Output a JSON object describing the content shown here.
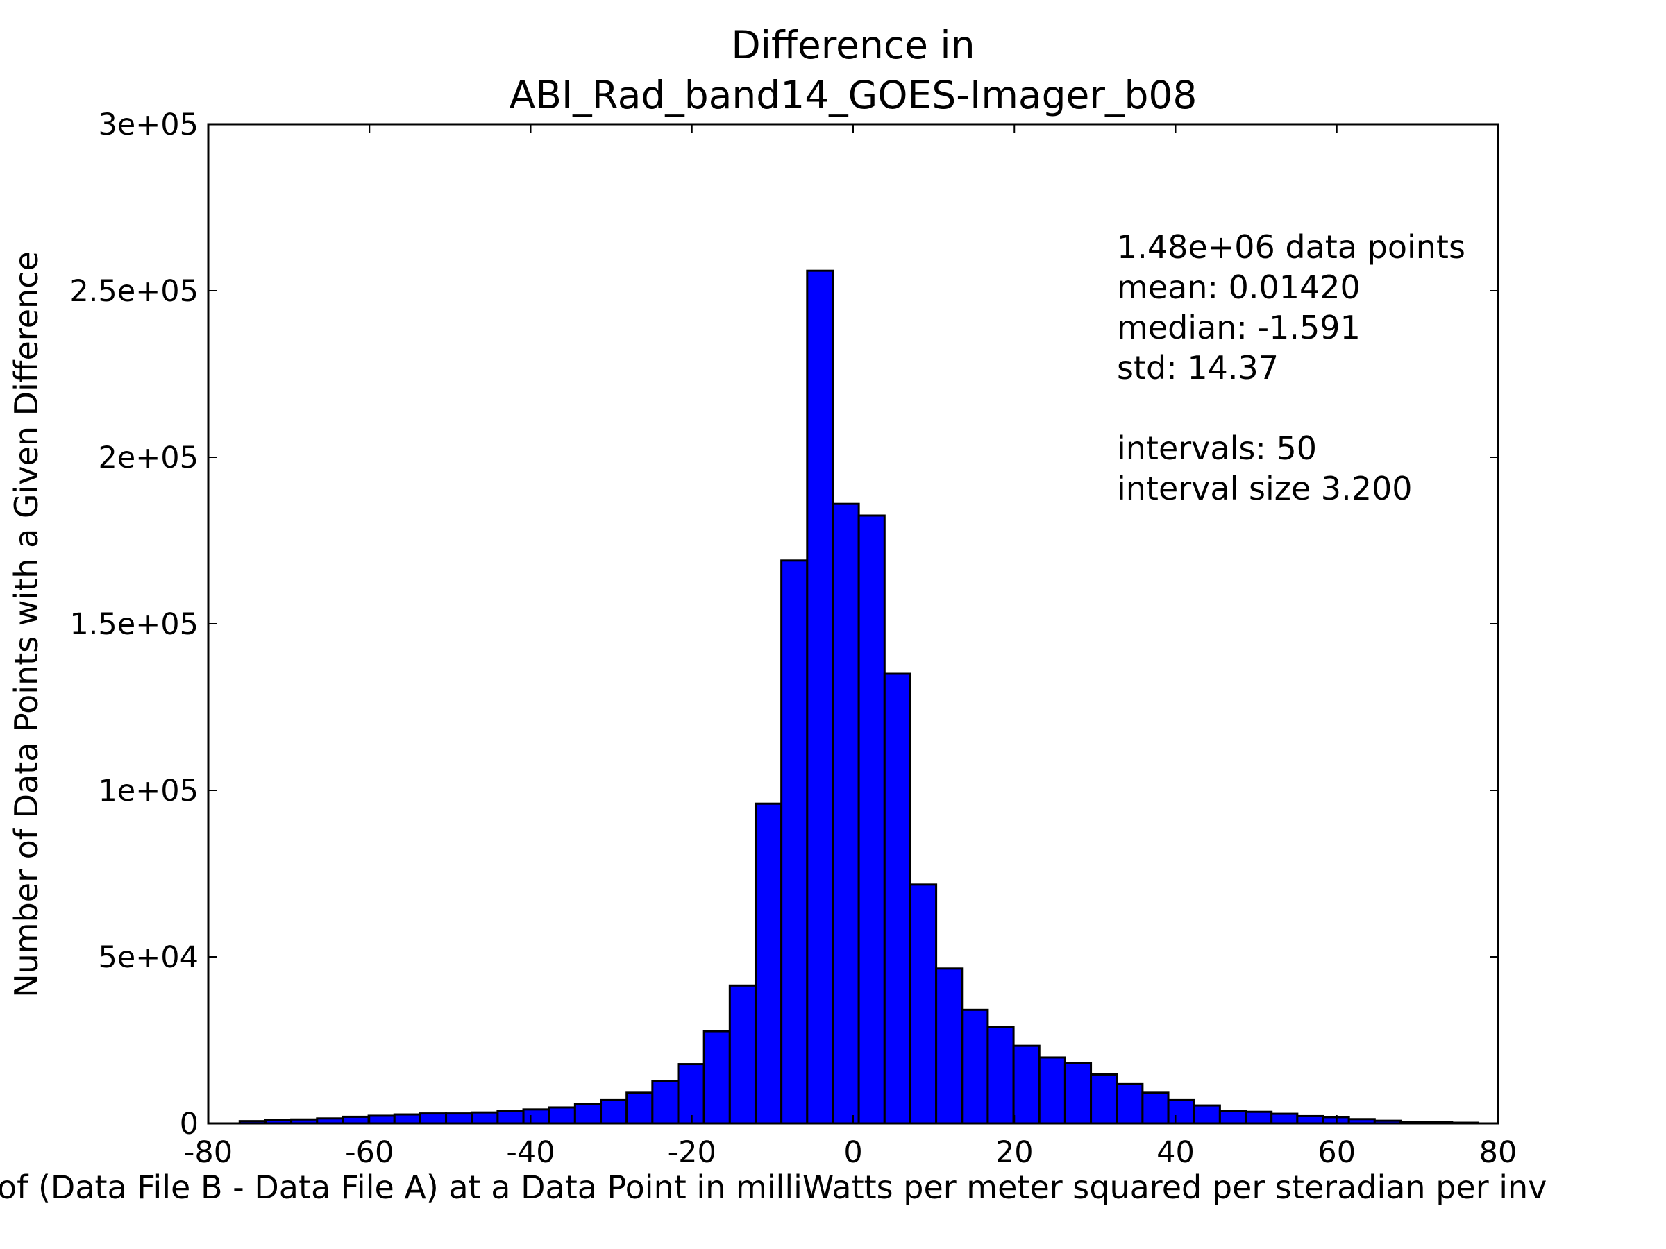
{
  "chart_data": {
    "type": "bar",
    "title_line1": "Difference in",
    "title_line2": "ABI_Rad_band14_GOES-Imager_b08",
    "xlabel": "of (Data File B - Data File A) at a Data Point in milliWatts per meter squared per steradian per inv",
    "ylabel": "Number of Data Points with a Given Difference",
    "xlim": [
      -80,
      80
    ],
    "ylim": [
      0,
      300000
    ],
    "xticks": [
      -80,
      -60,
      -40,
      -20,
      0,
      20,
      40,
      60,
      80
    ],
    "xtick_labels": [
      "-80",
      "-60",
      "-40",
      "-20",
      "0",
      "20",
      "40",
      "60",
      "80"
    ],
    "yticks": [
      0,
      50000,
      100000,
      150000,
      200000,
      250000,
      300000
    ],
    "ytick_labels": [
      "0",
      "5e+04",
      "1e+05",
      "1.5e+05",
      "2e+05",
      "2.5e+05",
      "3e+05"
    ],
    "bin_start": -76.1,
    "bin_width": 3.2,
    "values": [
      700,
      1000,
      1200,
      1500,
      2000,
      2300,
      2700,
      3000,
      3000,
      3300,
      3800,
      4200,
      4800,
      5800,
      7000,
      9200,
      12700,
      17800,
      27700,
      41400,
      96000,
      169000,
      256000,
      186000,
      182500,
      135000,
      71700,
      46500,
      34100,
      29000,
      23300,
      19800,
      18200,
      14700,
      11800,
      9200,
      7000,
      5400,
      3800,
      3500,
      2900,
      2200,
      1900,
      1300,
      800,
      400,
      400,
      200,
      0,
      0
    ],
    "bar_color": "#0000ff",
    "annotations": [
      "1.48e+06 data points",
      "mean: 0.01420",
      "median: -1.591",
      "std: 14.37",
      "",
      "intervals: 50",
      "interval size 3.200"
    ]
  }
}
